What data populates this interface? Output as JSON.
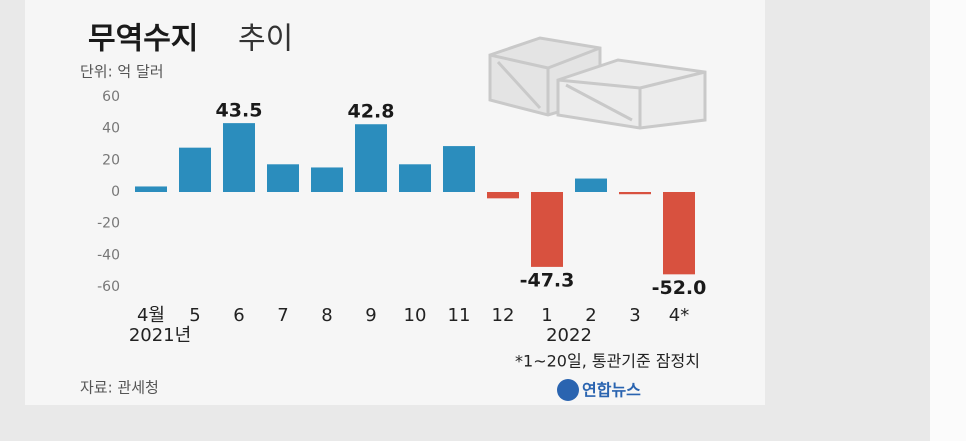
{
  "chart_data": {
    "type": "bar",
    "title": "무역수지",
    "title_light": "추이",
    "unit": "단위: 억 달러",
    "categories": [
      "4월",
      "5",
      "6",
      "7",
      "8",
      "9",
      "10",
      "11",
      "12",
      "1",
      "2",
      "3",
      "4*"
    ],
    "year_labels": [
      "2021년",
      "2022"
    ],
    "values": [
      3.5,
      28,
      43.5,
      17.5,
      15.5,
      42.8,
      17.5,
      29,
      -4,
      -47.3,
      8.5,
      -1.4,
      -52.0
    ],
    "value_labels": [
      null,
      null,
      "43.5",
      null,
      null,
      "42.8",
      null,
      null,
      null,
      "-47.3",
      null,
      null,
      "-52.0"
    ],
    "positive_color": "#2b8dbd",
    "negative_color": "#d8513f",
    "ylim": [
      -60,
      60
    ],
    "yticks": [
      60,
      40,
      20,
      0,
      -20,
      -40,
      -60
    ],
    "grid": false,
    "footnote": "*1~20일, 통관기준 잠정치",
    "source": "자료: 관세청",
    "logo": "연합뉴스"
  }
}
